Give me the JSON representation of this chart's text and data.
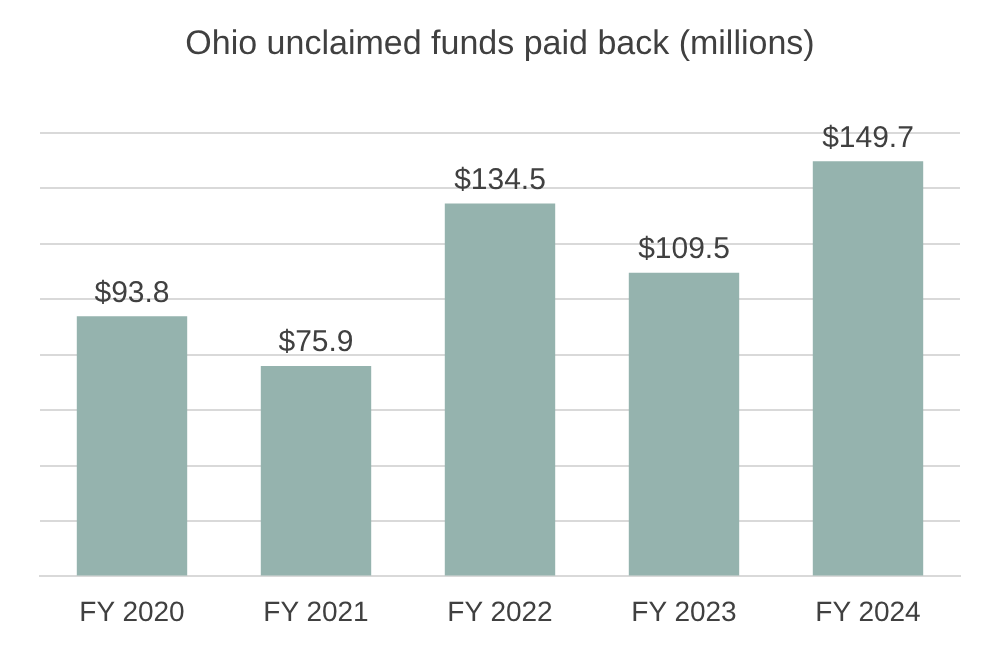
{
  "chart_data": {
    "type": "bar",
    "title": "Ohio unclaimed funds paid back (millions)",
    "categories": [
      "FY 2020",
      "FY 2021",
      "FY 2022",
      "FY 2023",
      "FY 2024"
    ],
    "values": [
      93.8,
      75.9,
      134.5,
      109.5,
      149.7
    ],
    "value_labels": [
      "$93.8",
      "$75.9",
      "$134.5",
      "$109.5",
      "$149.7"
    ],
    "color": "#95b3ae",
    "ylim": [
      0,
      160
    ],
    "yticks": [
      {
        "value": 0,
        "label": null
      },
      {
        "value": 20,
        "label": null
      },
      {
        "value": 40,
        "label": null
      },
      {
        "value": 60,
        "label": null
      },
      {
        "value": 80,
        "label": null
      },
      {
        "value": 100,
        "label": null
      },
      {
        "value": 120,
        "label": null
      },
      {
        "value": 140,
        "label": null
      },
      {
        "value": 160,
        "label": null
      }
    ],
    "grid": "y",
    "tick_labels": "x",
    "legend": false
  }
}
